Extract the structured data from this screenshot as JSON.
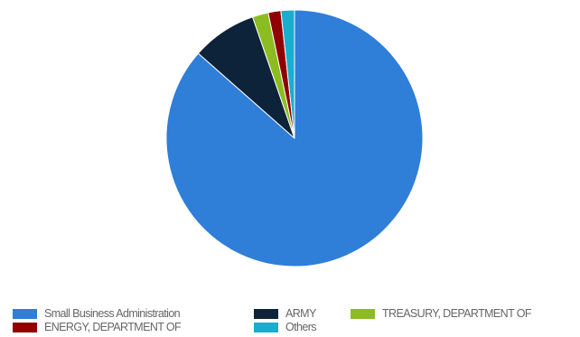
{
  "chart_data": {
    "type": "pie",
    "title": "",
    "slices": [
      {
        "label": "Small Business Administration",
        "value": 86.5,
        "color": "#2f7ed8"
      },
      {
        "label": "ARMY",
        "value": 8.2,
        "color": "#0d233a"
      },
      {
        "label": "TREASURY, DEPARTMENT OF",
        "value": 2.0,
        "color": "#8bbc21"
      },
      {
        "label": "ENERGY, DEPARTMENT OF",
        "value": 1.6,
        "color": "#910000"
      },
      {
        "label": "Others",
        "value": 1.7,
        "color": "#1aadce"
      }
    ],
    "start_angle": "12 o'clock",
    "direction": "clockwise",
    "legend_position": "bottom"
  }
}
